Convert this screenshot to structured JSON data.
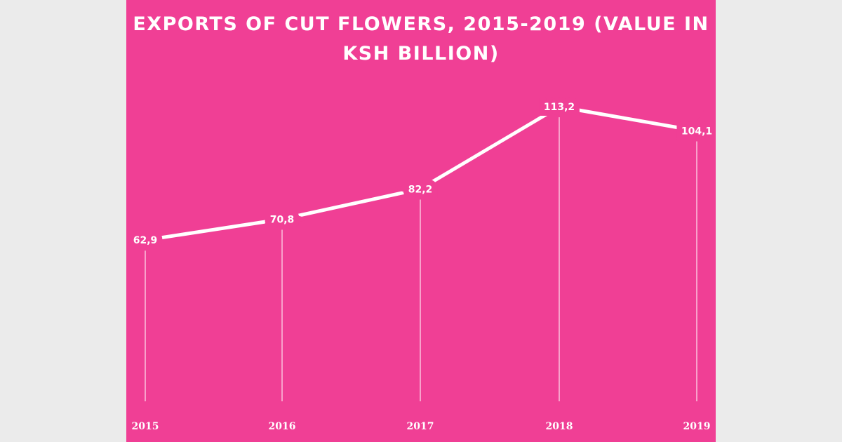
{
  "chart_data": {
    "type": "line",
    "title": "EXPORTS OF CUT FLOWERS, 2015-2019 (VALUE IN KSH BILLION)",
    "categories": [
      "2015",
      "2016",
      "2017",
      "2018",
      "2019"
    ],
    "values": [
      62.9,
      70.8,
      82.2,
      113.2,
      104.1
    ],
    "data_labels": [
      "62,9",
      "70,8",
      "82,2",
      "113,2",
      "104,1"
    ],
    "xlabel": "",
    "ylabel": "",
    "grid": false,
    "legend": "none",
    "colors": {
      "background": "#f03f95",
      "line": "#ffffff",
      "outer": "#ebebeb"
    }
  }
}
